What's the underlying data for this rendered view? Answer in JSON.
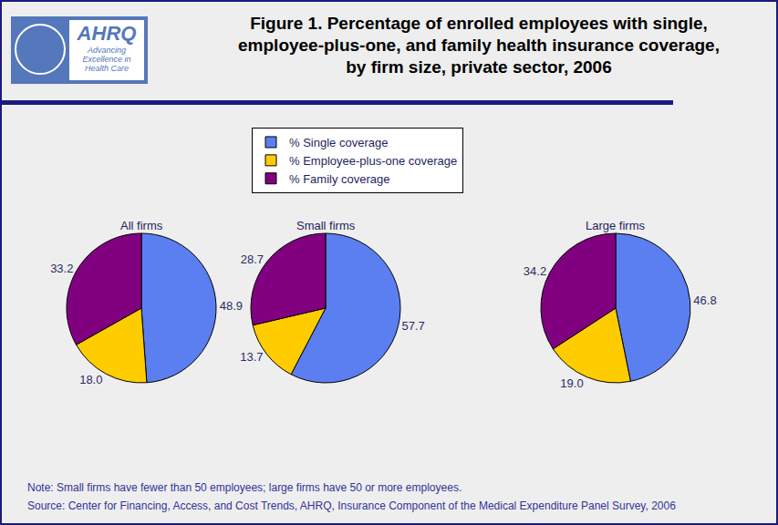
{
  "title": [
    "Figure 1. Percentage of enrolled employees with single,",
    "employee-plus-one, and family health insurance coverage,",
    "by firm size, private sector, 2006"
  ],
  "logo": {
    "name": "AHRQ",
    "tagline": "Advancing Excellence in Health Care"
  },
  "chart_data": [
    {
      "type": "pie",
      "title": "All firms",
      "categories": [
        "% Single coverage",
        "% Employee-plus-one coverage",
        "% Family coverage"
      ],
      "values": [
        48.9,
        18.0,
        33.2
      ],
      "value_labels": [
        "48.9",
        "18.0",
        "33.2"
      ],
      "colors": [
        "#5b7ff0",
        "#ffcc00",
        "#800080"
      ],
      "data_labels": true,
      "legend": "top"
    },
    {
      "type": "pie",
      "title": "Small firms",
      "categories": [
        "% Single coverage",
        "% Employee-plus-one coverage",
        "% Family coverage"
      ],
      "values": [
        57.7,
        13.7,
        28.7
      ],
      "value_labels": [
        "57.7",
        "13.7",
        "28.7"
      ],
      "colors": [
        "#5b7ff0",
        "#ffcc00",
        "#800080"
      ],
      "data_labels": true,
      "legend": "top"
    },
    {
      "type": "pie",
      "title": "Large firms",
      "categories": [
        "% Single coverage",
        "% Employee-plus-one coverage",
        "% Family coverage"
      ],
      "values": [
        46.8,
        19.0,
        34.2
      ],
      "value_labels": [
        "46.8",
        "19.0",
        "34.2"
      ],
      "colors": [
        "#5b7ff0",
        "#ffcc00",
        "#800080"
      ],
      "data_labels": true,
      "legend": "top"
    }
  ],
  "note": "Note: Small firms have fewer than 50 employees; large firms have 50 or more employees.",
  "source": "Source: Center for Financing, Access, and Cost Trends, AHRQ, Insurance Component of the Medical Expenditure Panel Survey, 2006"
}
